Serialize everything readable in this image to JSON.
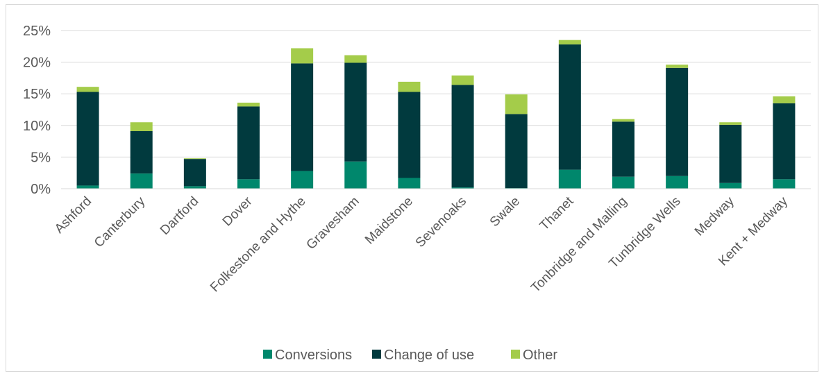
{
  "chart_data": {
    "type": "bar",
    "stacked": true,
    "title": "",
    "xlabel": "",
    "ylabel": "",
    "ylim": [
      0,
      25
    ],
    "yticks": [
      0,
      5,
      10,
      15,
      20,
      25
    ],
    "ytick_labels": [
      "0%",
      "5%",
      "10%",
      "15%",
      "20%",
      "25%"
    ],
    "grid": true,
    "legend_position": "bottom",
    "categories": [
      "Ashford",
      "Canterbury",
      "Dartford",
      "Dover",
      "Folkestone and Hythe",
      "Gravesham",
      "Maidstone",
      "Sevenoaks",
      "Swale",
      "Thanet",
      "Tonbridge and Malling",
      "Tunbridge Wells",
      "Medway",
      "Kent + Medway"
    ],
    "series": [
      {
        "name": "Conversions",
        "color": "#00876c",
        "values": [
          0.5,
          2.4,
          0.4,
          1.5,
          2.8,
          4.3,
          1.7,
          0.2,
          0.1,
          3.0,
          1.9,
          2.0,
          0.9,
          1.5
        ]
      },
      {
        "name": "Change of use",
        "color": "#013a3e",
        "values": [
          14.8,
          6.7,
          4.3,
          11.5,
          17.0,
          15.6,
          13.6,
          16.2,
          11.7,
          19.8,
          8.7,
          17.1,
          9.2,
          12.0
        ]
      },
      {
        "name": "Other",
        "color": "#a4cc4a",
        "values": [
          0.8,
          1.4,
          0.1,
          0.6,
          2.4,
          1.2,
          1.6,
          1.5,
          3.1,
          0.7,
          0.4,
          0.5,
          0.4,
          1.1
        ]
      }
    ]
  }
}
